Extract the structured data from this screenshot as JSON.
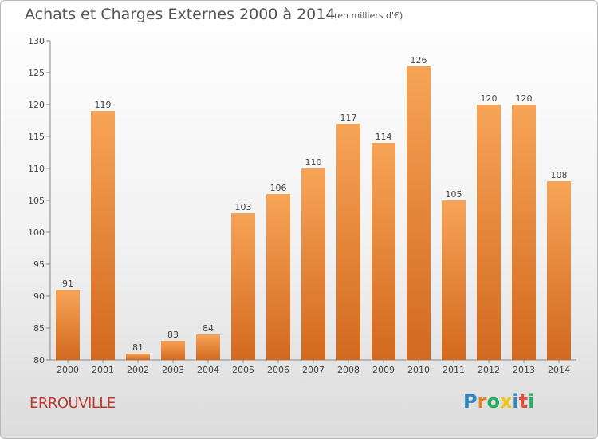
{
  "header": {
    "title": "Achats et Charges Externes 2000 à 2014",
    "subtitle": "(en milliers d'€)"
  },
  "footer": {
    "commune": "ERROUVILLE",
    "logo_text": "Proxiti"
  },
  "colors": {
    "bar_light": "#f7a457",
    "bar_dark": "#d2691e",
    "axis": "#888888",
    "commune_text": "#c0392b"
  },
  "chart_data": {
    "type": "bar",
    "title": "Achats et Charges Externes 2000 à 2014",
    "subtitle": "(en milliers d'€)",
    "xlabel": "",
    "ylabel": "",
    "categories": [
      "2000",
      "2001",
      "2002",
      "2003",
      "2004",
      "2005",
      "2006",
      "2007",
      "2008",
      "2009",
      "2010",
      "2011",
      "2012",
      "2013",
      "2014"
    ],
    "values": [
      91,
      119,
      81,
      83,
      84,
      103,
      106,
      110,
      117,
      114,
      126,
      105,
      120,
      120,
      108
    ],
    "ylim": [
      80,
      130
    ],
    "yticks": [
      80,
      85,
      90,
      95,
      100,
      105,
      110,
      115,
      120,
      125,
      130
    ],
    "grid": false,
    "data_labels": true
  }
}
